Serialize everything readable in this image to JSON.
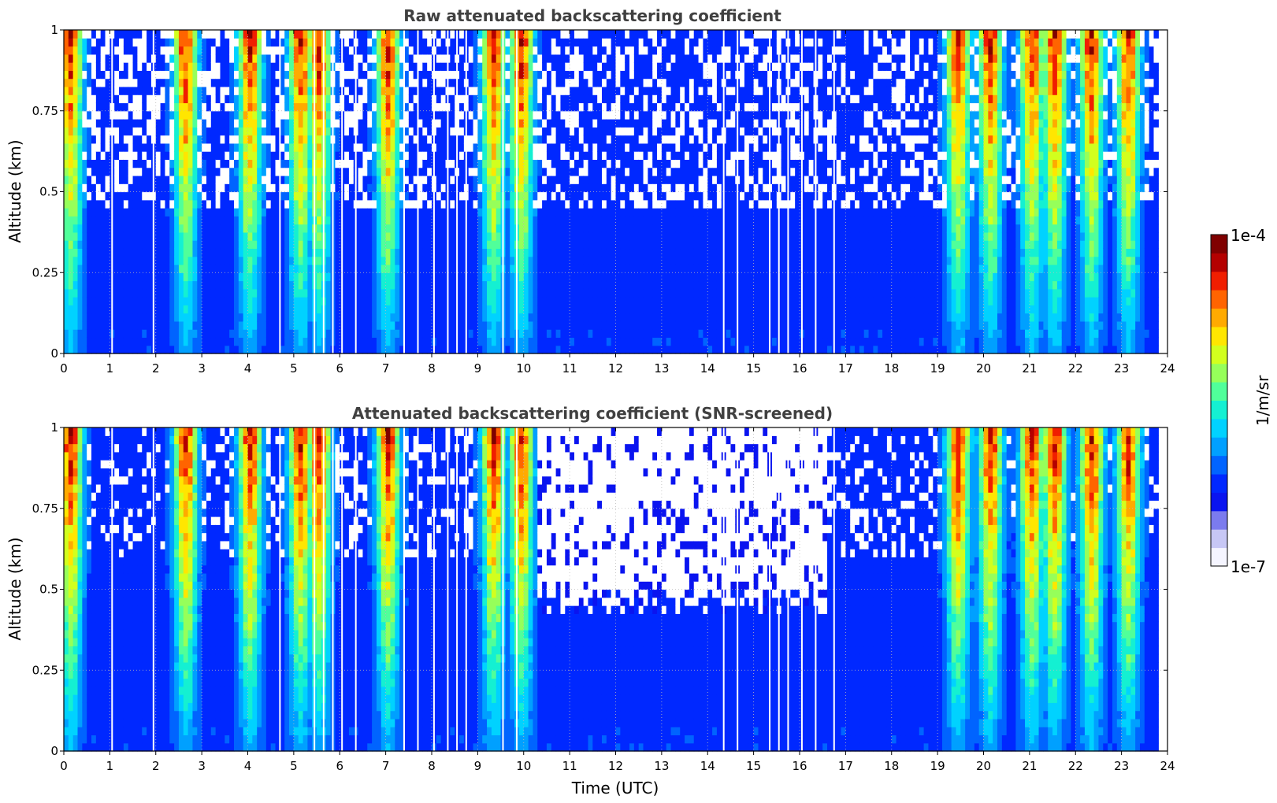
{
  "chart_data": [
    {
      "type": "heatmap",
      "title": "Raw attenuated backscattering coefficient",
      "ylabel": "Altitude (km)",
      "xlabel": "",
      "xlim": [
        0,
        24
      ],
      "ylim": [
        0,
        1
      ],
      "x_ticks": [
        "0",
        "1",
        "2",
        "3",
        "4",
        "5",
        "6",
        "7",
        "8",
        "9",
        "10",
        "11",
        "12",
        "13",
        "14",
        "15",
        "16",
        "17",
        "18",
        "19",
        "20",
        "21",
        "22",
        "23",
        "24"
      ],
      "y_ticks": [
        "0",
        "0.25",
        "0.5",
        "0.75",
        "1"
      ],
      "grid": true,
      "colormap": "jet",
      "screened": false,
      "strong_signal_hours": [
        0.1,
        2.6,
        4.0,
        5.1,
        5.5,
        7.0,
        9.3,
        9.9,
        19.4,
        20.1,
        21.0,
        21.5,
        22.3,
        23.1
      ],
      "no_data_hours": [
        1.05,
        1.95,
        4.7,
        5.45,
        5.65,
        5.85,
        6.05,
        6.35,
        7.4,
        7.7,
        8.05,
        8.35,
        8.55,
        8.75,
        9.55,
        9.85,
        14.35,
        14.65,
        15.35,
        15.55,
        15.75,
        16.05,
        16.35,
        16.75
      ]
    },
    {
      "type": "heatmap",
      "title": "Attenuated backscattering coefficient (SNR-screened)",
      "ylabel": "Altitude (km)",
      "xlabel": "Time (UTC)",
      "xlim": [
        0,
        24
      ],
      "ylim": [
        0,
        1
      ],
      "x_ticks": [
        "0",
        "1",
        "2",
        "3",
        "4",
        "5",
        "6",
        "7",
        "8",
        "9",
        "10",
        "11",
        "12",
        "13",
        "14",
        "15",
        "16",
        "17",
        "18",
        "19",
        "20",
        "21",
        "22",
        "23",
        "24"
      ],
      "y_ticks": [
        "0",
        "0.25",
        "0.5",
        "0.75",
        "1"
      ],
      "grid": true,
      "colormap": "jet",
      "screened": true,
      "strong_signal_hours": [
        0.1,
        2.6,
        4.0,
        5.1,
        5.5,
        7.0,
        9.3,
        9.9,
        19.4,
        20.1,
        21.0,
        21.5,
        22.3,
        23.1
      ],
      "no_data_hours": [
        1.05,
        1.95,
        4.7,
        5.45,
        5.65,
        5.85,
        6.05,
        6.35,
        7.4,
        7.7,
        8.05,
        8.35,
        8.55,
        8.75,
        9.55,
        9.85,
        14.35,
        14.65,
        15.35,
        15.55,
        15.75,
        16.05,
        16.35,
        16.75
      ]
    }
  ],
  "colorbar": {
    "label": "1/m/sr",
    "max_label": "1e-4",
    "min_label": "1e-7",
    "colors": [
      "#f5f5ff",
      "#c7c7f5",
      "#7b7bee",
      "#0a14f0",
      "#0028ff",
      "#0064ff",
      "#00a0ff",
      "#00d2ff",
      "#14f0d2",
      "#50ff9a",
      "#96ff5a",
      "#d2ff1e",
      "#ffe600",
      "#ffaa00",
      "#ff6400",
      "#f01e00",
      "#b40000",
      "#800000"
    ]
  }
}
